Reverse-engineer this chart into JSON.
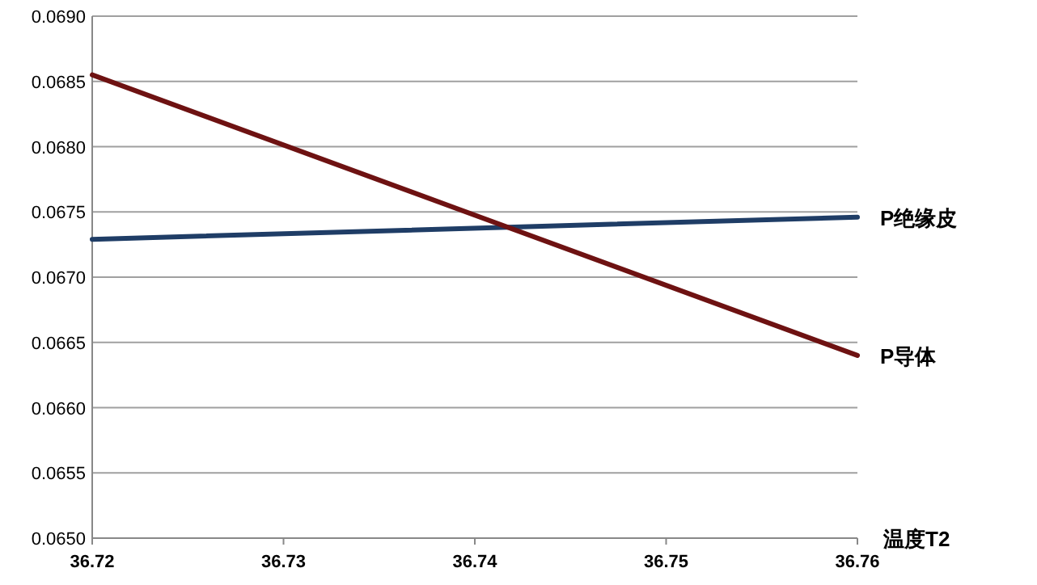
{
  "chart_data": {
    "type": "line",
    "xlabel": "温度T2",
    "x": [
      36.72,
      36.76
    ],
    "series": [
      {
        "name": "P绝缘皮",
        "color": "#1f3d66",
        "values": [
          0.06729,
          0.06746
        ]
      },
      {
        "name": "P导体",
        "color": "#6e1212",
        "values": [
          0.06855,
          0.0664
        ]
      }
    ],
    "xlim": [
      36.72,
      36.76
    ],
    "xticks": [
      36.72,
      36.73,
      36.74,
      36.75,
      36.76
    ],
    "ylim": [
      0.065,
      0.069
    ],
    "yticks": [
      {
        "value": 0.065,
        "label": "0.0650"
      },
      {
        "value": 0.0655,
        "label": "0.0655"
      },
      {
        "value": 0.066,
        "label": "0.0660"
      },
      {
        "value": 0.0665,
        "label": "0.0665"
      },
      {
        "value": 0.067,
        "label": "0.0670"
      },
      {
        "value": 0.0675,
        "label": "0.0675"
      },
      {
        "value": 0.068,
        "label": "0.0680"
      },
      {
        "value": 0.0685,
        "label": "0.0685"
      },
      {
        "value": 0.069,
        "label": "0.0690"
      }
    ],
    "grid": "y",
    "marker": "none",
    "line_style": "solid"
  }
}
